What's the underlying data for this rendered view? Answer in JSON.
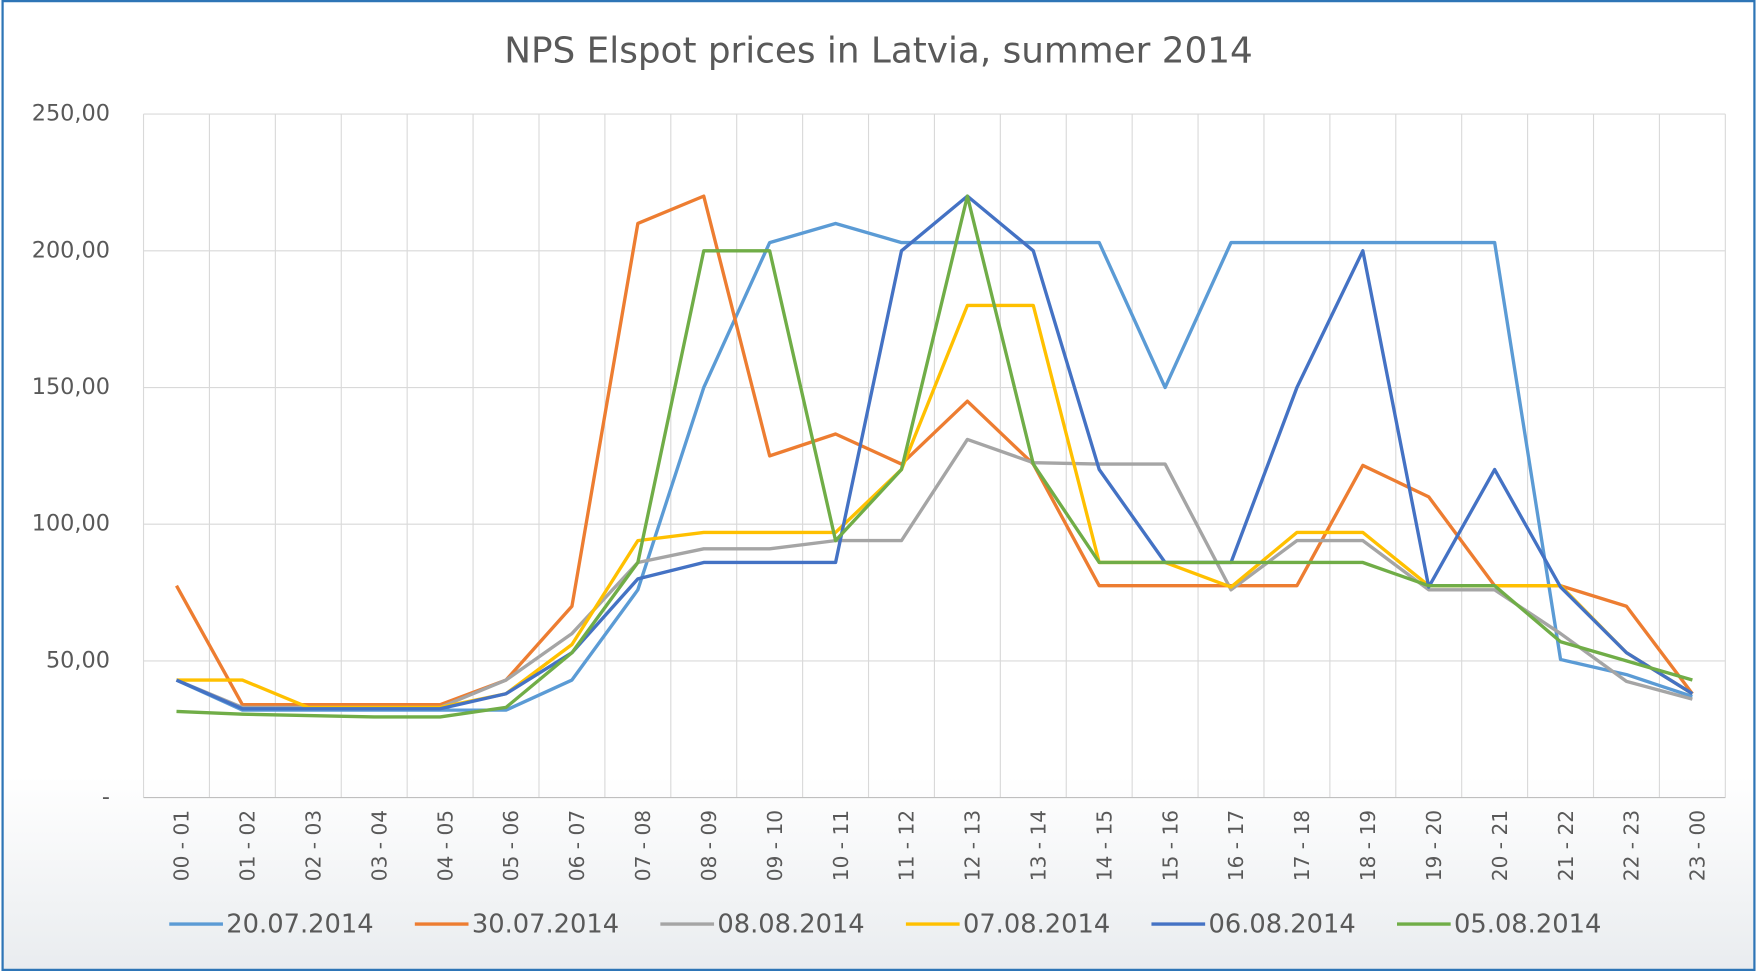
{
  "chart_data": {
    "type": "line",
    "title": "NPS Elspot prices in Latvia, summer 2014",
    "categories": [
      "00 - 01",
      "01 - 02",
      "02 - 03",
      "03 - 04",
      "04 - 05",
      "05 - 06",
      "06 - 07",
      "07 - 08",
      "08 - 09",
      "09 - 10",
      "10 - 11",
      "11 - 12",
      "12 - 13",
      "13 - 14",
      "14 - 15",
      "15 - 16",
      "16 - 17",
      "17 - 18",
      "18 - 19",
      "19 - 20",
      "20 - 21",
      "21 - 22",
      "22 - 23",
      "23 - 00"
    ],
    "series": [
      {
        "name": "20.07.2014",
        "color": "#5b9bd5",
        "values": [
          43,
          32,
          32,
          32,
          32,
          32,
          43,
          76,
          150,
          203,
          210,
          203,
          203,
          203,
          203,
          150,
          203,
          203,
          203,
          203,
          203,
          50.5,
          45,
          37
        ]
      },
      {
        "name": "30.07.2014",
        "color": "#ed7d31",
        "values": [
          77.5,
          34,
          34,
          34,
          34,
          43,
          70,
          210,
          220,
          125,
          133,
          122,
          145,
          122,
          77.5,
          77.5,
          77.5,
          77.5,
          121.5,
          110,
          77.5,
          77.5,
          70,
          38
        ]
      },
      {
        "name": "08.08.2014",
        "color": "#a5a5a5",
        "values": [
          43,
          33,
          33,
          33,
          33,
          43,
          60,
          86,
          91,
          91,
          94,
          94,
          131,
          122.5,
          122,
          122,
          76,
          94,
          94,
          76,
          76,
          60,
          42.5,
          36
        ]
      },
      {
        "name": "07.08.2014",
        "color": "#ffc000",
        "values": [
          43,
          43,
          33,
          33,
          33,
          38,
          56,
          94,
          97,
          97,
          97,
          120,
          180,
          180,
          86,
          86,
          77,
          97,
          97,
          77.5,
          77.5,
          77.5,
          53,
          38
        ]
      },
      {
        "name": "06.08.2014",
        "color": "#4472c4",
        "values": [
          43,
          32.5,
          32.5,
          32.5,
          32.5,
          38,
          53,
          80,
          86,
          86,
          86,
          200,
          220,
          200,
          120,
          86,
          86,
          150,
          200,
          77,
          120,
          77,
          53,
          38
        ]
      },
      {
        "name": "05.08.2014",
        "color": "#70ad47",
        "values": [
          31.5,
          30.5,
          30,
          29.5,
          29.5,
          33,
          53,
          86,
          200,
          200,
          94,
          120,
          220,
          122,
          86,
          86,
          86,
          86,
          86,
          77.5,
          77.5,
          57,
          50,
          43
        ]
      }
    ],
    "ylim": [
      0,
      250
    ],
    "yticks": [
      {
        "value": 0,
        "label": "-"
      },
      {
        "value": 50,
        "label": "50,00"
      },
      {
        "value": 100,
        "label": "100,00"
      },
      {
        "value": 150,
        "label": "150,00"
      },
      {
        "value": 200,
        "label": "200,00"
      },
      {
        "value": 250,
        "label": "250,00"
      }
    ],
    "grid": true,
    "legend": "bottom"
  }
}
